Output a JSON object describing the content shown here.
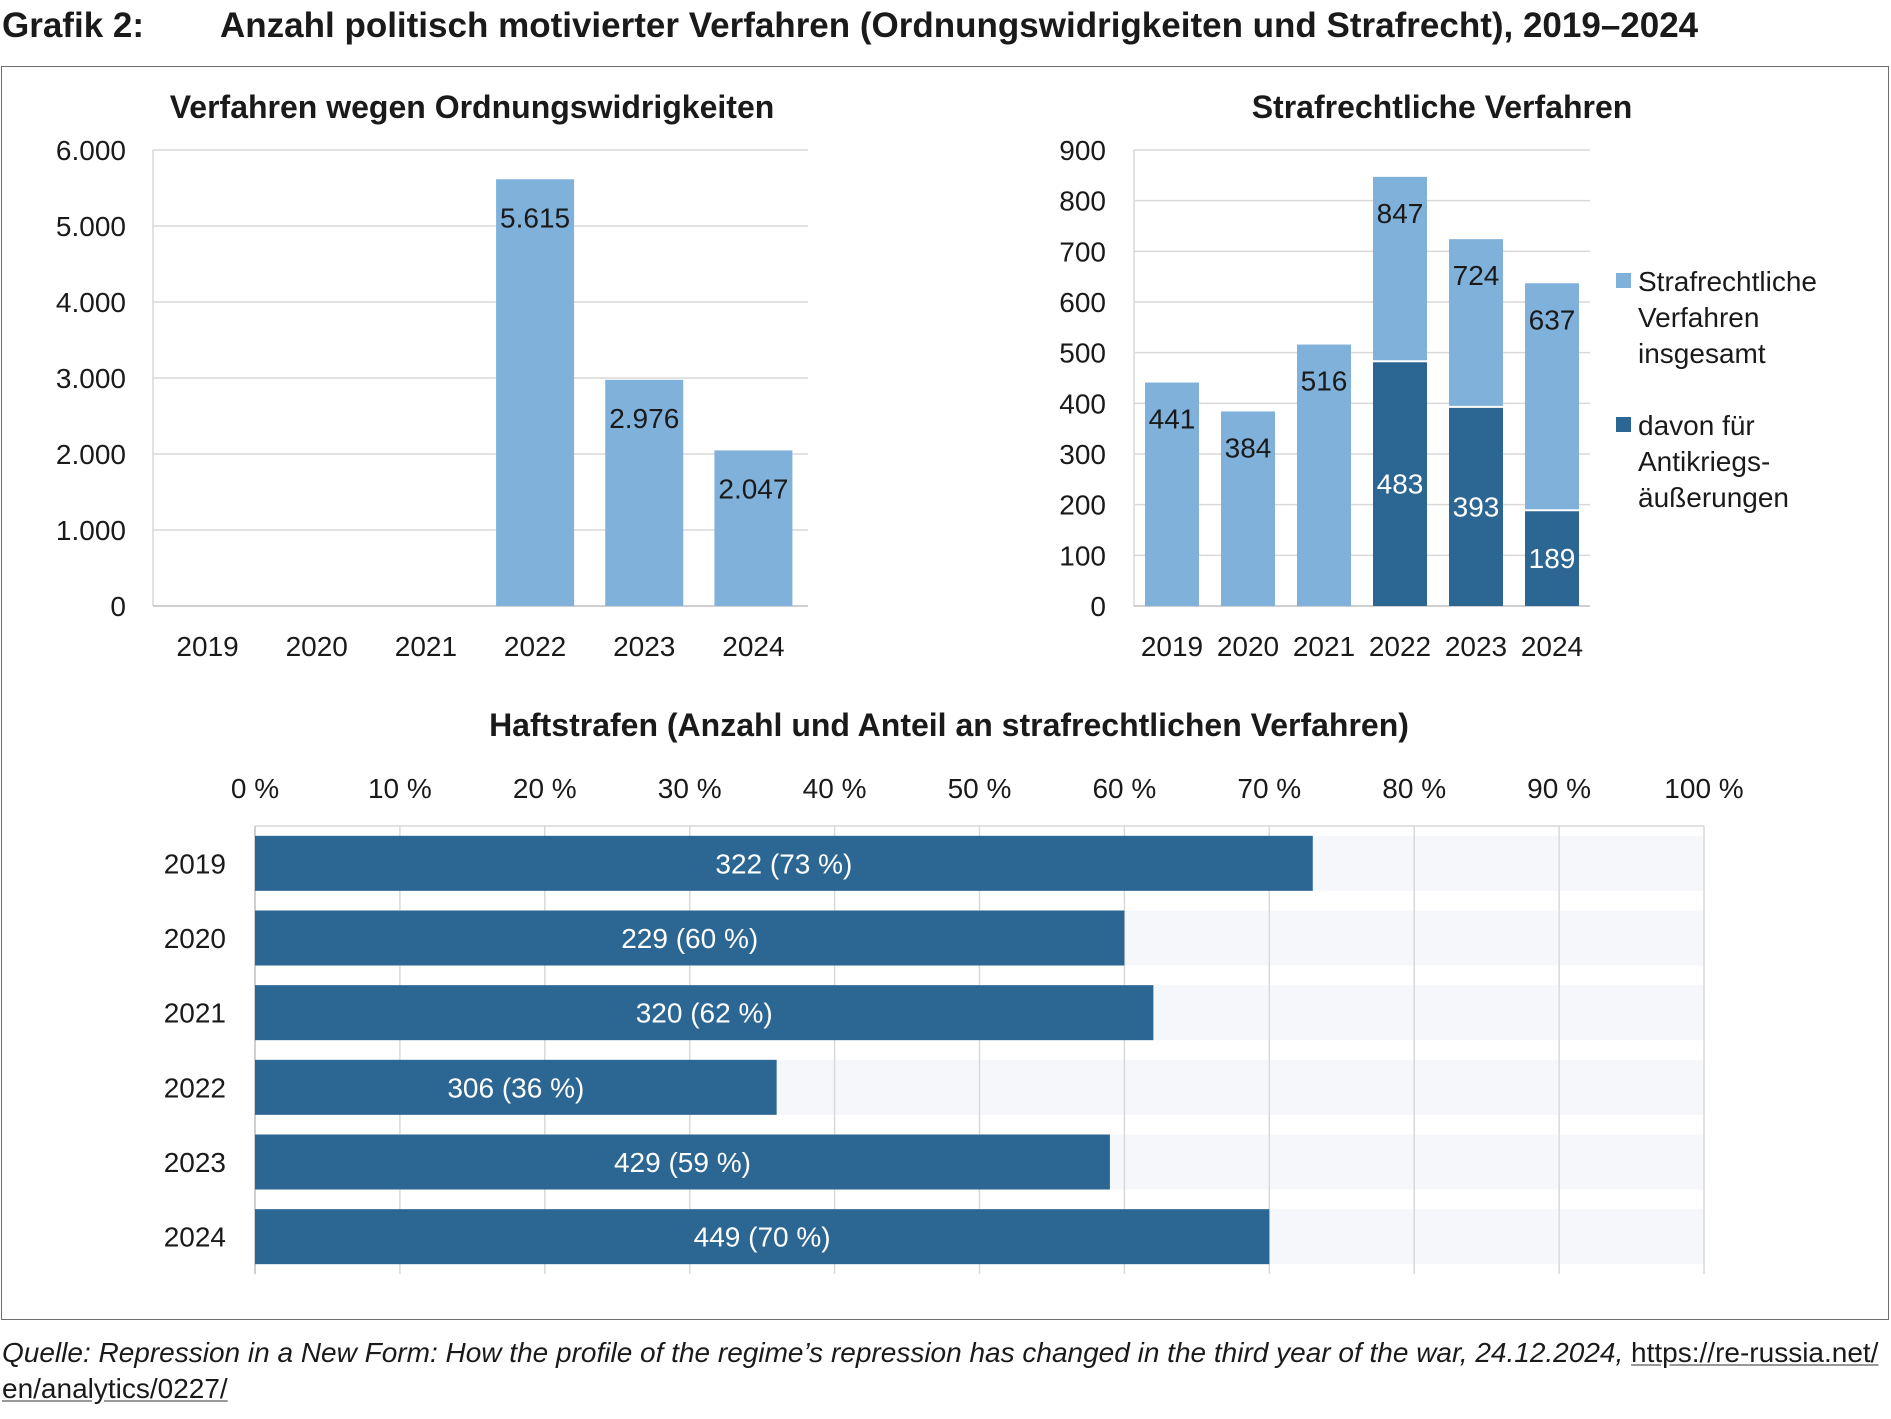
{
  "header": {
    "label": "Grafik 2:",
    "title": "Anzahl politisch motivierter Verfahren (Ordnungswidrigkeiten und Strafrecht), 2019–2024"
  },
  "colors": {
    "light": "#7fb1da",
    "dark": "#2c6692",
    "grid": "#d9d9d9",
    "track": "#f6f7fa"
  },
  "chart_data": [
    {
      "type": "bar",
      "title": "Verfahren wegen Ordnungswidrigkeiten",
      "categories": [
        "2019",
        "2020",
        "2021",
        "2022",
        "2023",
        "2024"
      ],
      "values": [
        null,
        null,
        null,
        5615,
        2976,
        2047
      ],
      "labels": [
        "",
        "",
        "",
        "5.615",
        "2.976",
        "2.047"
      ],
      "yticks": [
        "0",
        "1.000",
        "2.000",
        "3.000",
        "4.000",
        "5.000",
        "6.000"
      ],
      "ylim": [
        0,
        6000
      ]
    },
    {
      "type": "bar",
      "title": "Strafrechtliche Verfahren",
      "categories": [
        "2019",
        "2020",
        "2021",
        "2022",
        "2023",
        "2024"
      ],
      "series": [
        {
          "name": "Strafrechtliche Verfahren insgesamt",
          "values": [
            441,
            384,
            516,
            847,
            724,
            637
          ],
          "labels": [
            "441",
            "384",
            "516",
            "847",
            "724",
            "637"
          ]
        },
        {
          "name": "davon für Antikriegs-äußerungen",
          "values": [
            null,
            null,
            null,
            483,
            393,
            189
          ],
          "labels": [
            "",
            "",
            "",
            "483",
            "393",
            "189"
          ]
        }
      ],
      "legend": [
        {
          "lines": [
            "Strafrechtliche",
            "Verfahren",
            "insgesamt"
          ]
        },
        {
          "lines": [
            "davon für",
            "Antikriegs-",
            "äußerungen"
          ]
        }
      ],
      "yticks": [
        "0",
        "100",
        "200",
        "300",
        "400",
        "500",
        "600",
        "700",
        "800",
        "900"
      ],
      "ylim": [
        0,
        900
      ]
    },
    {
      "type": "bar",
      "orientation": "horizontal",
      "title": "Haftstrafen (Anzahl und Anteil an strafrechtlichen Verfahren)",
      "categories": [
        "2019",
        "2020",
        "2021",
        "2022",
        "2023",
        "2024"
      ],
      "values": [
        73,
        60,
        62,
        36,
        59,
        70
      ],
      "labels": [
        "322 (73 %)",
        "229 (60 %)",
        "320 (62 %)",
        "306 (36 %)",
        "429 (59 %)",
        "449 (70 %)"
      ],
      "xticks": [
        "0 %",
        "10 %",
        "20 %",
        "30 %",
        "40 %",
        "50 %",
        "60 %",
        "70 %",
        "80 %",
        "90 %",
        "100 %"
      ],
      "xlim": [
        0,
        100
      ]
    }
  ],
  "footer": {
    "source": "Quelle: Repression in a New Form: How the profile of the regime’s repression has changed in the third year of the war, 24.12.2024, ",
    "url_part1": "https://re-russia.net/",
    "url_part2": "en/analytics/0227/"
  }
}
